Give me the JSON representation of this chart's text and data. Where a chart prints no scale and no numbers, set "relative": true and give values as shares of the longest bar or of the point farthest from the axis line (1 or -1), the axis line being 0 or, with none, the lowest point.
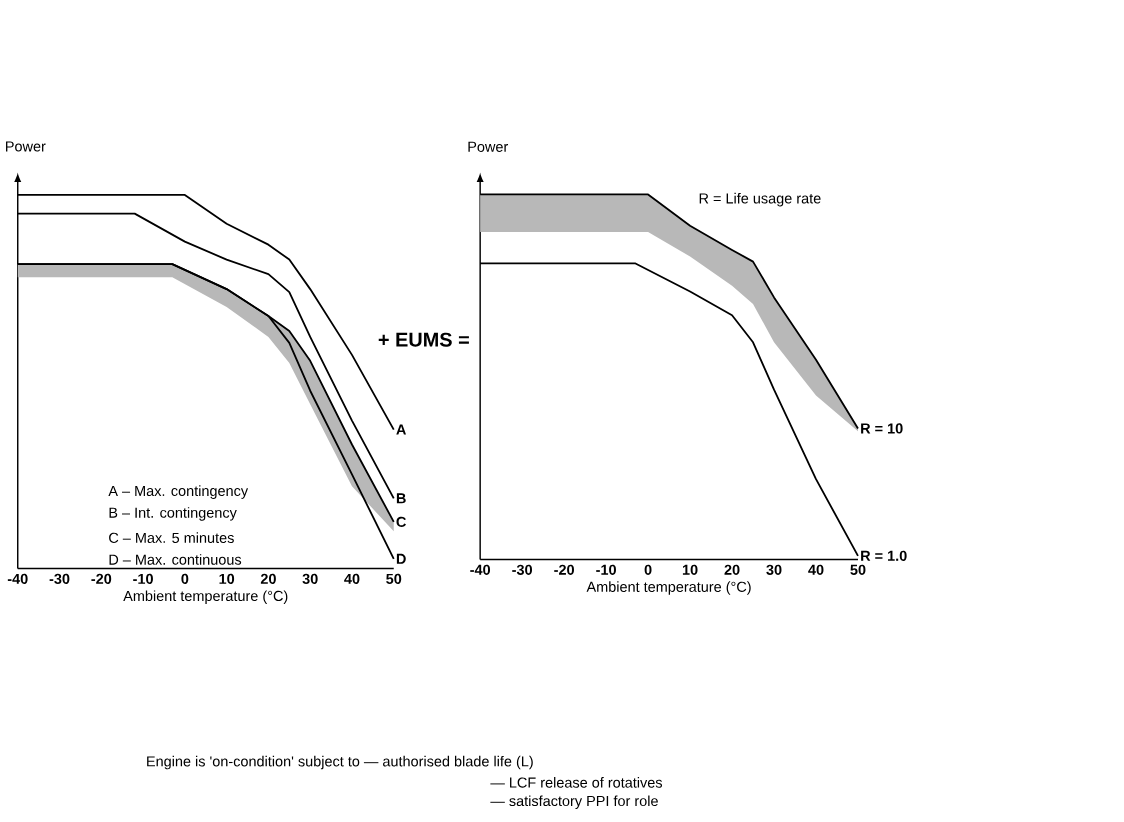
{
  "chart_data": [
    {
      "type": "line",
      "relative": true,
      "xlabel": "Ambient temperature (°C)",
      "ylabel": "Power",
      "xlim": [
        -40,
        50
      ],
      "xticks": [
        -40,
        -30,
        -20,
        -10,
        0,
        10,
        20,
        30,
        40,
        50
      ],
      "line_style": "solid",
      "marker": "none",
      "annotations": [
        "A – Max. contingency",
        "B – Int. contingency",
        "C – Max. 5 minutes",
        "D – Max. continuous",
        "+ EUMS =",
        "Engine is 'on-condition' subject to — authorised blade life (L)",
        "— LCF release of rotatives",
        "— satisfactory PPI for role"
      ],
      "series": [
        {
          "name": "A",
          "color": "#000000",
          "x": [
            -40,
            0,
            10,
            20,
            25,
            30,
            40,
            50
          ],
          "values": [
            1.0,
            1.0,
            0.923,
            0.867,
            0.827,
            0.748,
            0.572,
            0.372
          ]
        },
        {
          "name": "B",
          "color": "#000000",
          "x": [
            -40,
            -12,
            0,
            10,
            20,
            25,
            30,
            40,
            50
          ],
          "values": [
            0.95,
            0.95,
            0.875,
            0.827,
            0.788,
            0.74,
            0.62,
            0.396,
            0.188
          ]
        },
        {
          "name": "C",
          "color": "#000000",
          "x": [
            -40,
            -3,
            10,
            20,
            25,
            30,
            40,
            50
          ],
          "values": [
            0.815,
            0.815,
            0.748,
            0.676,
            0.636,
            0.556,
            0.332,
            0.125
          ],
          "lower": [
            0.78,
            0.78,
            0.7,
            0.62,
            0.55,
            0.44,
            0.22,
            0.1
          ],
          "upper": [
            0.815,
            0.815,
            0.748,
            0.676,
            0.636,
            0.556,
            0.332,
            0.125
          ]
        },
        {
          "name": "D",
          "color": "#000000",
          "x": [
            -40,
            -3,
            10,
            20,
            25,
            30,
            40,
            50
          ],
          "values": [
            0.815,
            0.815,
            0.748,
            0.676,
            0.604,
            0.476,
            0.252,
            0.026
          ]
        }
      ]
    },
    {
      "type": "line",
      "relative": true,
      "xlabel": "Ambient temperature (°C)",
      "ylabel": "Power",
      "xlim": [
        -40,
        50
      ],
      "xticks": [
        -40,
        -30,
        -20,
        -10,
        0,
        10,
        20,
        30,
        40,
        50
      ],
      "line_style": "solid",
      "marker": "none",
      "annotations": [
        "R = Life usage rate"
      ],
      "series": [
        {
          "name": "R = 10",
          "color": "#000000",
          "x": [
            -40,
            0,
            10,
            20,
            25,
            30,
            40,
            50
          ],
          "values": [
            1.0,
            1.0,
            0.914,
            0.848,
            0.816,
            0.718,
            0.547,
            0.359
          ],
          "lower": [
            0.897,
            0.897,
            0.83,
            0.75,
            0.7,
            0.595,
            0.449,
            0.351
          ],
          "upper": [
            1.0,
            1.0,
            0.914,
            0.848,
            0.816,
            0.718,
            0.547,
            0.359
          ]
        },
        {
          "name": "R = 1.0",
          "color": "#000000",
          "x": [
            -40,
            -3,
            10,
            20,
            25,
            30,
            40,
            50
          ],
          "values": [
            0.811,
            0.811,
            0.734,
            0.669,
            0.595,
            0.465,
            0.22,
            0.01
          ]
        }
      ]
    }
  ]
}
